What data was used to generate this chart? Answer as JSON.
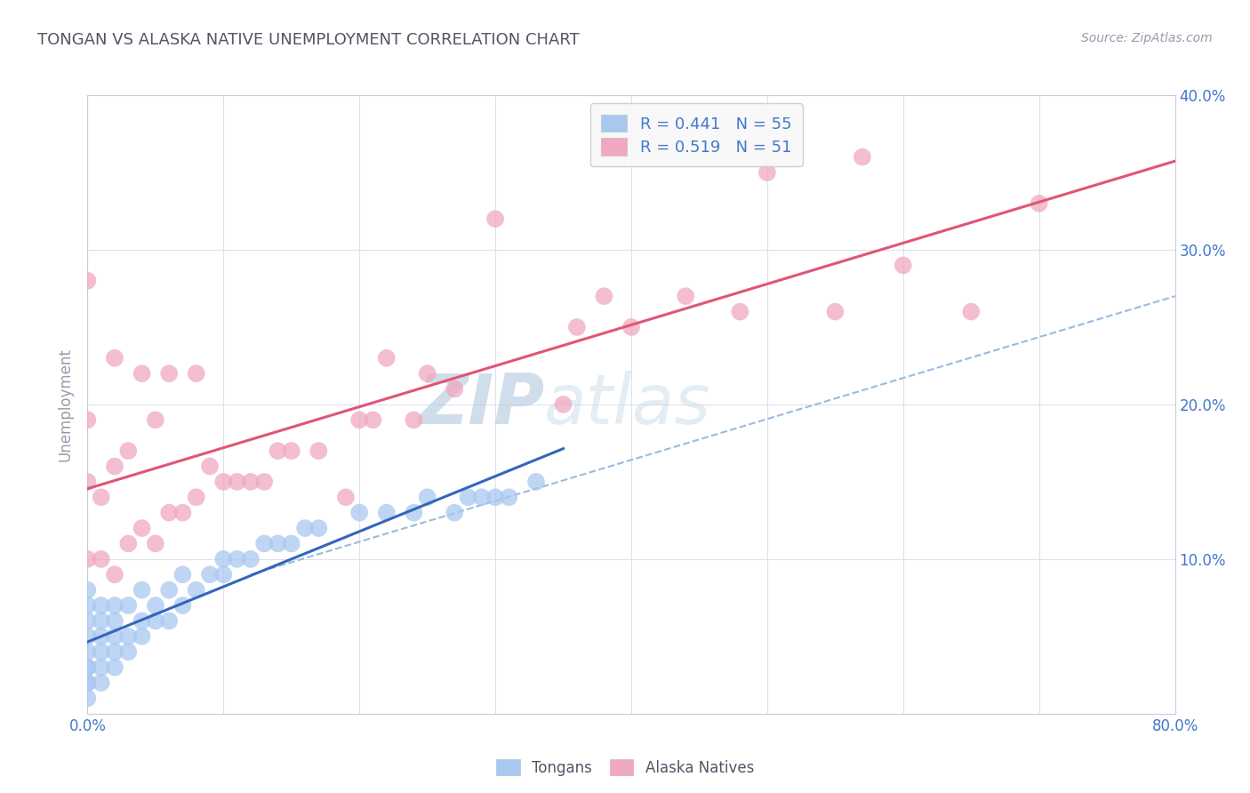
{
  "title": "TONGAN VS ALASKA NATIVE UNEMPLOYMENT CORRELATION CHART",
  "source_text": "Source: ZipAtlas.com",
  "ylabel": "Unemployment",
  "xlim": [
    0.0,
    0.8
  ],
  "ylim": [
    0.0,
    0.4
  ],
  "xticks": [
    0.0,
    0.1,
    0.2,
    0.3,
    0.4,
    0.5,
    0.6,
    0.7,
    0.8
  ],
  "yticks": [
    0.0,
    0.1,
    0.2,
    0.3,
    0.4
  ],
  "R_tongan": 0.441,
  "N_tongan": 55,
  "R_alaska": 0.519,
  "N_alaska": 51,
  "tongan_color": "#a8c8f0",
  "alaska_color": "#f0a8c0",
  "tongan_line_color": "#3366bb",
  "alaska_line_color": "#e05575",
  "dashed_line_color": "#99bbdd",
  "legend_box_color": "#f8f8f8",
  "legend_text_color": "#4477cc",
  "title_color": "#555566",
  "watermark_color": "#ccdde8",
  "background_color": "#ffffff",
  "grid_color": "#e0e0ee",
  "tongan_scatter_x": [
    0.0,
    0.0,
    0.0,
    0.0,
    0.0,
    0.0,
    0.0,
    0.0,
    0.0,
    0.0,
    0.01,
    0.01,
    0.01,
    0.01,
    0.01,
    0.01,
    0.02,
    0.02,
    0.02,
    0.02,
    0.02,
    0.03,
    0.03,
    0.03,
    0.04,
    0.04,
    0.04,
    0.05,
    0.05,
    0.06,
    0.06,
    0.07,
    0.07,
    0.08,
    0.09,
    0.1,
    0.1,
    0.11,
    0.12,
    0.13,
    0.14,
    0.15,
    0.16,
    0.17,
    0.2,
    0.22,
    0.24,
    0.25,
    0.27,
    0.28,
    0.29,
    0.3,
    0.31,
    0.33
  ],
  "tongan_scatter_y": [
    0.01,
    0.02,
    0.03,
    0.04,
    0.05,
    0.06,
    0.07,
    0.08,
    0.02,
    0.03,
    0.02,
    0.03,
    0.04,
    0.05,
    0.06,
    0.07,
    0.03,
    0.04,
    0.05,
    0.06,
    0.07,
    0.04,
    0.05,
    0.07,
    0.05,
    0.06,
    0.08,
    0.06,
    0.07,
    0.06,
    0.08,
    0.07,
    0.09,
    0.08,
    0.09,
    0.09,
    0.1,
    0.1,
    0.1,
    0.11,
    0.11,
    0.11,
    0.12,
    0.12,
    0.13,
    0.13,
    0.13,
    0.14,
    0.13,
    0.14,
    0.14,
    0.14,
    0.14,
    0.15
  ],
  "alaska_scatter_x": [
    0.0,
    0.0,
    0.0,
    0.0,
    0.01,
    0.01,
    0.02,
    0.02,
    0.02,
    0.03,
    0.03,
    0.04,
    0.04,
    0.05,
    0.05,
    0.06,
    0.06,
    0.07,
    0.08,
    0.08,
    0.09,
    0.1,
    0.11,
    0.12,
    0.13,
    0.14,
    0.15,
    0.17,
    0.19,
    0.2,
    0.21,
    0.22,
    0.24,
    0.25,
    0.27,
    0.3,
    0.35,
    0.36,
    0.38,
    0.4,
    0.44,
    0.48,
    0.5,
    0.55,
    0.57,
    0.6,
    0.65,
    0.7
  ],
  "alaska_scatter_y": [
    0.1,
    0.15,
    0.19,
    0.28,
    0.1,
    0.14,
    0.09,
    0.16,
    0.23,
    0.11,
    0.17,
    0.12,
    0.22,
    0.11,
    0.19,
    0.13,
    0.22,
    0.13,
    0.14,
    0.22,
    0.16,
    0.15,
    0.15,
    0.15,
    0.15,
    0.17,
    0.17,
    0.17,
    0.14,
    0.19,
    0.19,
    0.23,
    0.19,
    0.22,
    0.21,
    0.32,
    0.2,
    0.25,
    0.27,
    0.25,
    0.27,
    0.26,
    0.35,
    0.26,
    0.36,
    0.29,
    0.26,
    0.33
  ]
}
